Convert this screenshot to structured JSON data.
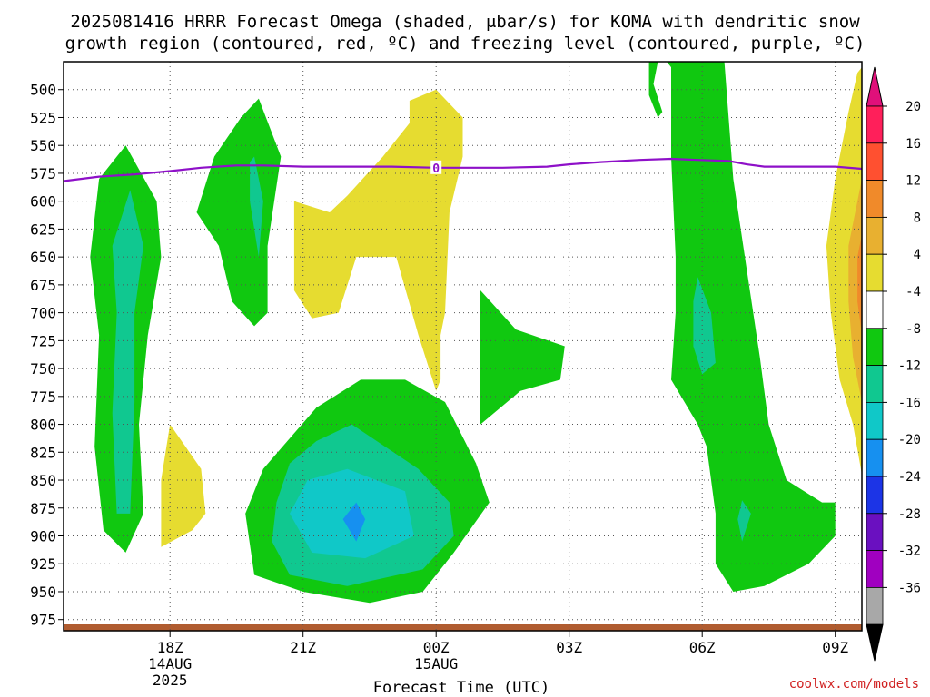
{
  "title_line1": "2025081416 HRRR Forecast Omega (shaded, μbar/s) for KOMA with dendritic snow",
  "title_line2": "growth region (contoured, red, ºC) and freezing level (contoured, purple, ºC)",
  "credit": "coolwx.com/models",
  "chart_data": {
    "type": "heatmap",
    "title": "2025081416 HRRR Forecast Omega (shaded, μbar/s) for KOMA with dendritic snow growth region (contoured, red, ºC) and freezing level (contoured, purple, ºC)",
    "xlabel": "Forecast Time (UTC)",
    "ylabel": "",
    "x_range_hours": [
      15.6,
      33.6
    ],
    "y_range_hPa": [
      475,
      985
    ],
    "y_ticks": [
      500,
      525,
      550,
      575,
      600,
      625,
      650,
      675,
      700,
      725,
      750,
      775,
      800,
      825,
      850,
      875,
      900,
      925,
      950,
      975
    ],
    "x_ticks": [
      {
        "hour": 18,
        "label": "18Z",
        "label2": "14AUG",
        "label3": "2025"
      },
      {
        "hour": 21,
        "label": "21Z",
        "label2": "",
        "label3": ""
      },
      {
        "hour": 24,
        "label": "00Z",
        "label2": "15AUG",
        "label3": ""
      },
      {
        "hour": 27,
        "label": "03Z",
        "label2": "",
        "label3": ""
      },
      {
        "hour": 30,
        "label": "06Z",
        "label2": "",
        "label3": ""
      },
      {
        "hour": 33,
        "label": "09Z",
        "label2": "",
        "label3": ""
      }
    ],
    "grid": true,
    "colorbar": {
      "placement": "right",
      "labels": [
        "20",
        "16",
        "12",
        "8",
        "4",
        "-4",
        "-8",
        "-12",
        "-16",
        "-20",
        "-24",
        "-28",
        "-32",
        "-36"
      ],
      "colors": [
        "#ff1f5a",
        "#ff5030",
        "#f08a2a",
        "#e8b030",
        "#e6dc30",
        "#ffffff",
        "#10c810",
        "#10c890",
        "#10c8c8",
        "#1690f0",
        "#1c34e6",
        "#6a10c0",
        "#a000c0",
        "#a8a8a8"
      ],
      "max_color": "#e0107a",
      "min_color": "#000000"
    },
    "omega_regions": [
      {
        "level": "-4",
        "color": "#10c810",
        "points": [
          [
            17.0,
            550
          ],
          [
            17.7,
            600
          ],
          [
            17.8,
            650
          ],
          [
            17.5,
            720
          ],
          [
            17.3,
            800
          ],
          [
            17.4,
            880
          ],
          [
            17.0,
            915
          ],
          [
            16.5,
            895
          ],
          [
            16.3,
            820
          ],
          [
            16.4,
            720
          ],
          [
            16.2,
            650
          ],
          [
            16.4,
            580
          ]
        ]
      },
      {
        "level": "-8",
        "color": "#10c890",
        "points": [
          [
            17.1,
            590
          ],
          [
            17.4,
            640
          ],
          [
            17.2,
            700
          ],
          [
            17.2,
            780
          ],
          [
            17.1,
            880
          ],
          [
            16.8,
            880
          ],
          [
            16.7,
            790
          ],
          [
            16.8,
            700
          ],
          [
            16.7,
            640
          ]
        ]
      },
      {
        "level": "-4",
        "color": "#10c810",
        "points": [
          [
            20.0,
            508
          ],
          [
            20.5,
            560
          ],
          [
            20.2,
            640
          ],
          [
            20.2,
            700
          ],
          [
            19.9,
            712
          ],
          [
            19.4,
            690
          ],
          [
            19.1,
            640
          ],
          [
            18.6,
            610
          ],
          [
            19.0,
            560
          ],
          [
            19.6,
            525
          ]
        ]
      },
      {
        "level": "-8",
        "color": "#10c890",
        "points": [
          [
            19.9,
            560
          ],
          [
            20.1,
            600
          ],
          [
            20.0,
            650
          ],
          [
            19.8,
            600
          ],
          [
            19.8,
            565
          ]
        ]
      },
      {
        "level": "4",
        "color": "#e6dc30",
        "points": [
          [
            24.0,
            500
          ],
          [
            24.6,
            525
          ],
          [
            24.6,
            560
          ],
          [
            24.3,
            610
          ],
          [
            24.2,
            700
          ],
          [
            24.1,
            720
          ],
          [
            24.1,
            760
          ],
          [
            24.0,
            770
          ],
          [
            23.6,
            720
          ],
          [
            23.1,
            650
          ],
          [
            22.2,
            650
          ],
          [
            21.8,
            700
          ],
          [
            21.2,
            705
          ],
          [
            20.8,
            680
          ],
          [
            20.8,
            600
          ],
          [
            21.6,
            610
          ],
          [
            22.0,
            595
          ],
          [
            22.8,
            560
          ],
          [
            23.4,
            530
          ],
          [
            23.4,
            510
          ]
        ]
      },
      {
        "level": "-4",
        "color": "#10c810",
        "points": [
          [
            23.3,
            760
          ],
          [
            24.2,
            780
          ],
          [
            24.9,
            835
          ],
          [
            25.2,
            870
          ],
          [
            24.4,
            915
          ],
          [
            23.7,
            950
          ],
          [
            22.5,
            960
          ],
          [
            21.0,
            950
          ],
          [
            19.9,
            935
          ],
          [
            19.7,
            880
          ],
          [
            20.1,
            840
          ],
          [
            21.3,
            785
          ],
          [
            22.3,
            760
          ]
        ]
      },
      {
        "level": "-8",
        "color": "#10c890",
        "points": [
          [
            22.1,
            800
          ],
          [
            23.6,
            840
          ],
          [
            24.3,
            870
          ],
          [
            24.4,
            900
          ],
          [
            23.7,
            930
          ],
          [
            22.0,
            945
          ],
          [
            20.7,
            935
          ],
          [
            20.3,
            905
          ],
          [
            20.4,
            870
          ],
          [
            20.7,
            835
          ],
          [
            21.3,
            815
          ]
        ]
      },
      {
        "level": "-12",
        "color": "#10c8c8",
        "points": [
          [
            22.0,
            840
          ],
          [
            23.3,
            860
          ],
          [
            23.5,
            900
          ],
          [
            22.4,
            920
          ],
          [
            21.2,
            915
          ],
          [
            20.7,
            880
          ],
          [
            21.1,
            850
          ]
        ]
      },
      {
        "level": "-16",
        "color": "#1690f0",
        "points": [
          [
            22.2,
            870
          ],
          [
            22.4,
            885
          ],
          [
            22.2,
            905
          ],
          [
            21.9,
            885
          ]
        ]
      },
      {
        "level": "4",
        "color": "#e6dc30",
        "points": [
          [
            18.0,
            800
          ],
          [
            18.7,
            840
          ],
          [
            18.8,
            880
          ],
          [
            18.5,
            895
          ],
          [
            17.8,
            910
          ],
          [
            17.8,
            850
          ]
        ]
      },
      {
        "level": "-4",
        "color": "#10c810",
        "points": [
          [
            25.0,
            680
          ],
          [
            25.8,
            715
          ],
          [
            26.9,
            730
          ],
          [
            26.8,
            760
          ],
          [
            25.9,
            770
          ],
          [
            25.0,
            800
          ],
          [
            25.0,
            720
          ]
        ]
      },
      {
        "level": "-4",
        "color": "#10c810",
        "points": [
          [
            28.8,
            475
          ],
          [
            29.0,
            475
          ],
          [
            28.9,
            495
          ],
          [
            29.1,
            520
          ],
          [
            29.0,
            525
          ],
          [
            28.8,
            505
          ]
        ]
      },
      {
        "level": "-4",
        "color": "#10c810",
        "points": [
          [
            29.2,
            475
          ],
          [
            30.5,
            475
          ],
          [
            30.7,
            580
          ],
          [
            31.0,
            660
          ],
          [
            31.3,
            740
          ],
          [
            31.5,
            800
          ],
          [
            31.9,
            850
          ],
          [
            32.7,
            870
          ],
          [
            33.0,
            870
          ],
          [
            33.0,
            900
          ],
          [
            32.4,
            925
          ],
          [
            31.4,
            945
          ],
          [
            30.7,
            950
          ],
          [
            30.3,
            925
          ],
          [
            30.3,
            880
          ],
          [
            30.1,
            820
          ],
          [
            29.9,
            800
          ],
          [
            29.3,
            760
          ],
          [
            29.4,
            700
          ],
          [
            29.4,
            650
          ],
          [
            29.3,
            560
          ],
          [
            29.3,
            480
          ]
        ]
      },
      {
        "level": "-8",
        "color": "#10c890",
        "points": [
          [
            29.9,
            668
          ],
          [
            30.2,
            700
          ],
          [
            30.3,
            745
          ],
          [
            30.0,
            755
          ],
          [
            29.8,
            730
          ],
          [
            29.8,
            690
          ]
        ]
      },
      {
        "level": "-8",
        "color": "#10c890",
        "points": [
          [
            30.9,
            868
          ],
          [
            31.1,
            880
          ],
          [
            30.9,
            905
          ],
          [
            30.8,
            885
          ]
        ]
      },
      {
        "level": "4",
        "color": "#e6dc30",
        "points": [
          [
            33.6,
            480
          ],
          [
            33.6,
            845
          ],
          [
            33.4,
            800
          ],
          [
            33.1,
            760
          ],
          [
            32.9,
            700
          ],
          [
            32.8,
            640
          ],
          [
            33.0,
            580
          ],
          [
            33.3,
            520
          ],
          [
            33.5,
            485
          ]
        ]
      },
      {
        "level": "8",
        "color": "#e8b030",
        "points": [
          [
            33.6,
            580
          ],
          [
            33.6,
            780
          ],
          [
            33.4,
            740
          ],
          [
            33.3,
            690
          ],
          [
            33.3,
            640
          ],
          [
            33.5,
            600
          ]
        ]
      },
      {
        "level": "12",
        "color": "#f08a2a",
        "points": [
          [
            33.6,
            630
          ],
          [
            33.6,
            720
          ],
          [
            33.5,
            690
          ],
          [
            33.5,
            650
          ]
        ]
      }
    ],
    "freezing_level": {
      "label": "0",
      "label_hour": 24,
      "points": [
        [
          15.6,
          582
        ],
        [
          16.4,
          578
        ],
        [
          17.2,
          576
        ],
        [
          18.0,
          573
        ],
        [
          18.7,
          570
        ],
        [
          19.5,
          568
        ],
        [
          20.1,
          568
        ],
        [
          21.0,
          569
        ],
        [
          22.0,
          569
        ],
        [
          23.0,
          569
        ],
        [
          24.0,
          570
        ],
        [
          24.6,
          570
        ],
        [
          25.5,
          570
        ],
        [
          26.5,
          569
        ],
        [
          27.0,
          567
        ],
        [
          27.7,
          565
        ],
        [
          28.6,
          563
        ],
        [
          29.3,
          562
        ],
        [
          29.9,
          563
        ],
        [
          30.6,
          564
        ],
        [
          31.0,
          567
        ],
        [
          31.4,
          569
        ],
        [
          32.2,
          569
        ],
        [
          33.0,
          569
        ],
        [
          33.6,
          571
        ]
      ]
    },
    "surface_terrain": {
      "color": "#b05c30"
    }
  }
}
